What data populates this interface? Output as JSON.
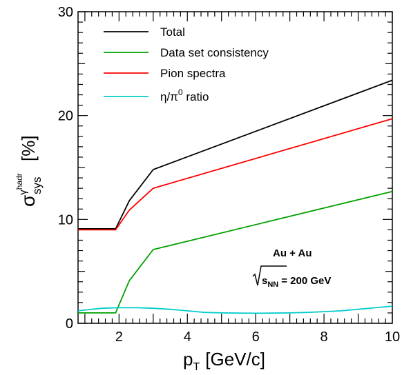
{
  "chart_data": {
    "type": "line",
    "xlabel": "p",
    "xlabel_sub": "T",
    "xlabel_rest": "[GeV/c]",
    "ylabel_sym": "σ",
    "ylabel_sup1": "γ",
    "ylabel_sup2": "hadr",
    "ylabel_sub": "sys",
    "ylabel_rest": "[%]",
    "xlim": [
      0.8,
      10
    ],
    "ylim": [
      0,
      30
    ],
    "xticks": [
      2,
      4,
      6,
      8,
      10
    ],
    "yticks": [
      0,
      10,
      20,
      30
    ],
    "grid": false,
    "legend_position": "top-left",
    "annotations": {
      "system": "Au + Au",
      "energy_prefix": "s",
      "energy_sub": "NN",
      "energy_value": "= 200 GeV"
    },
    "series": [
      {
        "name": "Total",
        "color": "#000000",
        "x": [
          0.8,
          1.9,
          2.3,
          3.0,
          10.0
        ],
        "y": [
          9.1,
          9.1,
          11.8,
          14.8,
          23.4
        ]
      },
      {
        "name": "Data set consistency",
        "color": "#00a000",
        "x": [
          0.8,
          1.9,
          2.3,
          3.0,
          10.0
        ],
        "y": [
          1.0,
          1.0,
          4.1,
          7.1,
          12.7
        ]
      },
      {
        "name": "Pion spectra",
        "color": "#ff0000",
        "x": [
          0.8,
          1.9,
          2.3,
          3.0,
          10.0
        ],
        "y": [
          9.0,
          9.0,
          10.9,
          13.0,
          19.7
        ]
      },
      {
        "name": "η/π0 ratio",
        "name_parts": [
          "η/π",
          "0",
          " ratio"
        ],
        "color": "#00cccc",
        "x": [
          0.8,
          1.2,
          1.5,
          2.0,
          2.5,
          3.0,
          3.5,
          4.0,
          4.5,
          5.0,
          5.5,
          6.0,
          6.5,
          7.0,
          7.5,
          8.0,
          8.5,
          9.0,
          9.5,
          10.0
        ],
        "y": [
          1.2,
          1.35,
          1.45,
          1.5,
          1.5,
          1.45,
          1.35,
          1.2,
          1.05,
          1.0,
          0.98,
          0.97,
          0.98,
          1.0,
          1.05,
          1.12,
          1.2,
          1.35,
          1.5,
          1.65
        ]
      }
    ]
  }
}
